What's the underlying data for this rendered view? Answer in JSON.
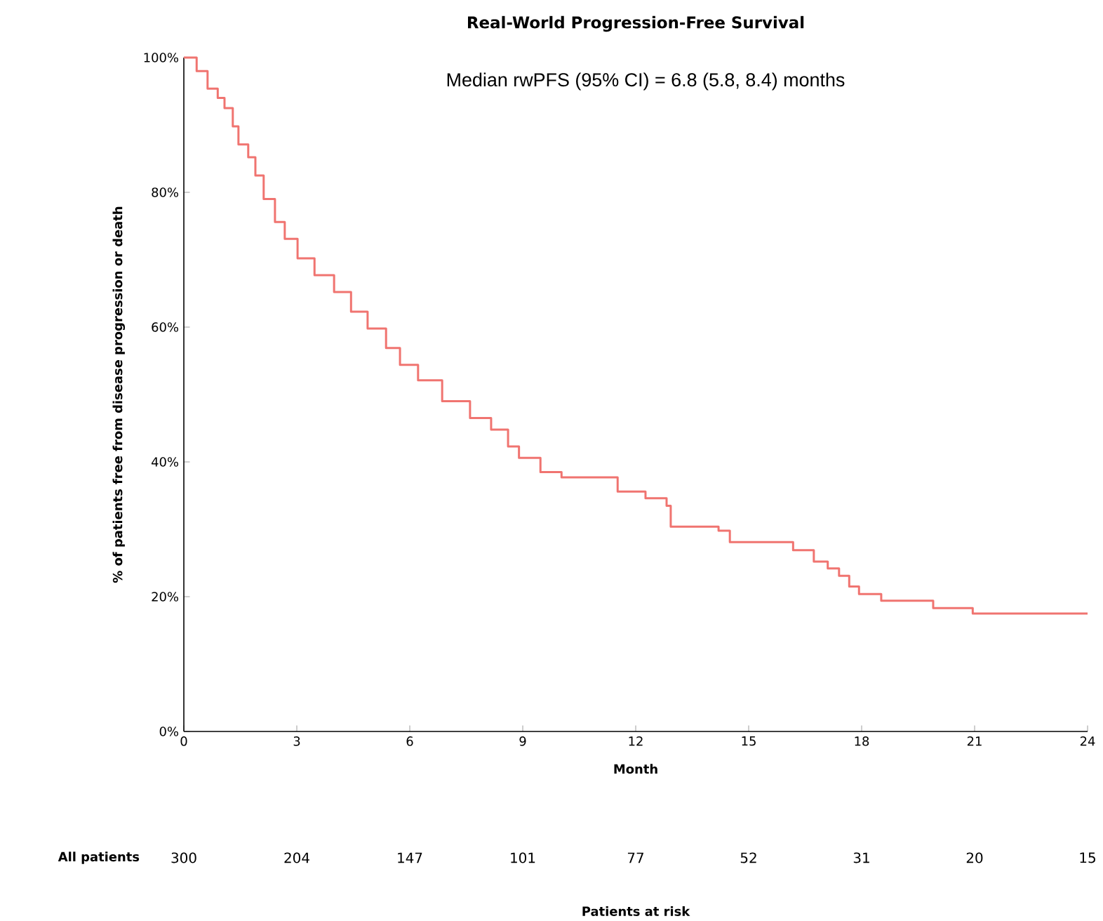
{
  "chart_data": {
    "type": "step",
    "title": "Real-World Progression-Free Survival",
    "subtitle": "Median rwPFS (95% CI) = 6.8 (5.8, 8.4) months",
    "xlabel": "Month",
    "ylabel": "% of patients free from disease progression or death",
    "x": [
      0,
      0.34,
      0.63,
      0.9,
      1.08,
      1.3,
      1.45,
      1.71,
      1.9,
      2.12,
      2.42,
      2.68,
      3.02,
      3.47,
      3.99,
      4.44,
      4.88,
      5.37,
      5.74,
      6.22,
      6.86,
      7.6,
      8.16,
      8.61,
      8.9,
      9.47,
      10.03,
      11.07,
      11.52,
      12.26,
      12.82,
      12.93,
      14.2,
      14.5,
      15.54,
      16.18,
      16.73,
      17.1,
      17.4,
      17.67,
      17.93,
      18.52,
      19.57,
      19.9,
      20.95,
      24
    ],
    "values": [
      100,
      98,
      95.4,
      94,
      92.5,
      89.8,
      87.1,
      85.2,
      82.5,
      79,
      75.6,
      73.1,
      70.2,
      67.7,
      65.2,
      62.3,
      59.8,
      56.9,
      54.4,
      52.1,
      49,
      46.5,
      44.8,
      42.3,
      40.6,
      38.5,
      37.7,
      37.7,
      35.6,
      34.6,
      33.5,
      30.4,
      29.8,
      28.1,
      28.1,
      26.9,
      25.2,
      24.2,
      23.1,
      21.5,
      20.4,
      19.4,
      19.4,
      18.3,
      17.5,
      17.5
    ],
    "color": "#f07470",
    "xlim": [
      0,
      24
    ],
    "xticks": [
      0,
      3,
      6,
      9,
      12,
      15,
      18,
      21,
      24
    ],
    "ylim": [
      0,
      100
    ],
    "yticks": [
      {
        "value": 0,
        "label": "0%"
      },
      {
        "value": 20,
        "label": "20%"
      },
      {
        "value": 40,
        "label": "40%"
      },
      {
        "value": 60,
        "label": "60%"
      },
      {
        "value": 80,
        "label": "80%"
      },
      {
        "value": 100,
        "label": "100%"
      }
    ],
    "grid": false,
    "marker": "none",
    "line_style": "solid",
    "annotations": [
      "All patients",
      "300",
      "204",
      "147",
      "101",
      "77",
      "52",
      "31",
      "20",
      "15",
      "Patients at risk"
    ]
  }
}
